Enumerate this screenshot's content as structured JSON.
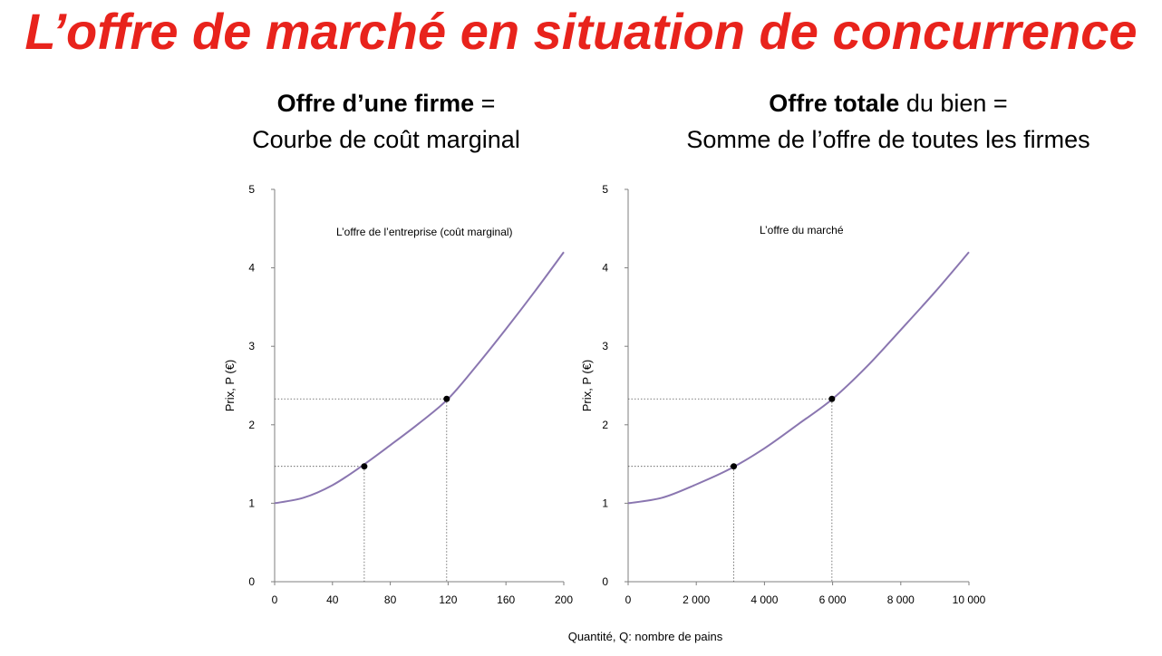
{
  "title": "L’offre de marché en situation de concurrence",
  "left_heading": {
    "bold": "Offre d’une firme",
    "rest": " =",
    "line2": "Courbe de coût marginal"
  },
  "right_heading": {
    "bold": "Offre totale",
    "rest": " du bien =",
    "line2": "Somme de l’offre de toutes les firmes"
  },
  "colors": {
    "title": "#e8231c",
    "curve": "#8a76b0",
    "axis": "#7f7f7f"
  },
  "chart_data": [
    {
      "type": "line",
      "annotation": "L’offre de l’entreprise (coût marginal)",
      "ylabel": "Prix, P (€)",
      "xlabel": "",
      "xlim": [
        0,
        200
      ],
      "ylim": [
        0,
        5
      ],
      "xticks": [
        0,
        40,
        80,
        120,
        160,
        200
      ],
      "xtick_labels": [
        "0",
        "40",
        "80",
        "120",
        "160",
        "200"
      ],
      "yticks": [
        0,
        1,
        2,
        3,
        4,
        5
      ],
      "series": [
        {
          "x": [
            0,
            20,
            40,
            60,
            80,
            100,
            120,
            140,
            160,
            180,
            200
          ],
          "y": [
            1.0,
            1.07,
            1.23,
            1.47,
            1.74,
            2.02,
            2.33,
            2.76,
            3.22,
            3.7,
            4.2
          ]
        }
      ],
      "points": [
        {
          "x": 62,
          "y": 1.47
        },
        {
          "x": 119,
          "y": 2.33
        }
      ]
    },
    {
      "type": "line",
      "annotation": "L’offre du marché",
      "ylabel": "Prix, P (€)",
      "xlabel": "Quantité, Q: nombre de pains",
      "xlim": [
        0,
        10000
      ],
      "ylim": [
        0,
        5
      ],
      "xticks": [
        0,
        2000,
        4000,
        6000,
        8000,
        10000
      ],
      "xtick_labels": [
        "0",
        "2 000",
        "4 000",
        "6 000",
        "8 000",
        "10 000"
      ],
      "yticks": [
        0,
        1,
        2,
        3,
        4,
        5
      ],
      "series": [
        {
          "x": [
            0,
            1000,
            2000,
            3000,
            4000,
            5000,
            6000,
            7000,
            8000,
            9000,
            10000
          ],
          "y": [
            1.0,
            1.07,
            1.24,
            1.44,
            1.7,
            2.01,
            2.33,
            2.74,
            3.21,
            3.69,
            4.2
          ]
        }
      ],
      "points": [
        {
          "x": 3100,
          "y": 1.47
        },
        {
          "x": 5980,
          "y": 2.33
        }
      ]
    }
  ]
}
